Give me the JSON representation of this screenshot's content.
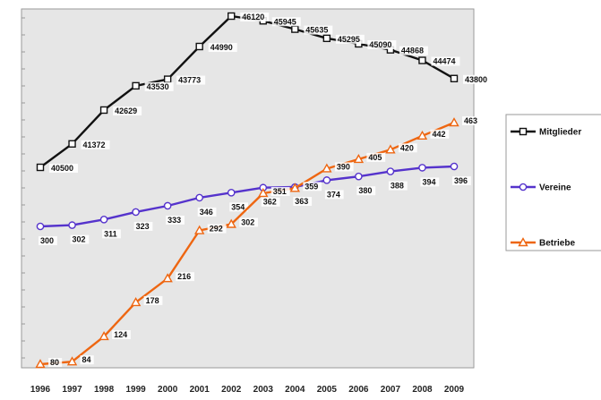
{
  "chart_data": {
    "type": "line",
    "title": "",
    "xlabel": "",
    "ylabel": "",
    "x": [
      "1996",
      "1997",
      "1998",
      "1999",
      "2000",
      "2001",
      "2002",
      "2003",
      "2004",
      "2005",
      "2006",
      "2007",
      "2008",
      "2009"
    ],
    "series": [
      {
        "name": "Mitglieder",
        "color": "#111111",
        "marker": "square",
        "values": [
          40500,
          41372,
          42629,
          43530,
          43773,
          44990,
          46120,
          45945,
          45635,
          45295,
          45090,
          44868,
          44474,
          43800
        ],
        "labels": [
          "40500",
          "41372",
          "42629",
          "43530",
          "43773",
          "44990",
          "46120",
          "45945",
          "45635",
          "45295",
          "45090",
          "44868",
          "44474",
          "43800"
        ]
      },
      {
        "name": "Vereine",
        "color": "#5533cc",
        "marker": "circle",
        "values": [
          300,
          302,
          311,
          323,
          333,
          346,
          354,
          362,
          363,
          374,
          380,
          388,
          394,
          396
        ],
        "labels": [
          "300",
          "302",
          "311",
          "323",
          "333",
          "346",
          "354",
          "362",
          "363",
          "374",
          "380",
          "388",
          "394",
          "396"
        ]
      },
      {
        "name": "Betriebe",
        "color": "#ee6611",
        "marker": "triangle",
        "values": [
          80,
          84,
          124,
          178,
          216,
          292,
          302,
          351,
          359,
          390,
          405,
          420,
          442,
          463
        ],
        "labels": [
          "80",
          "84",
          "124",
          "178",
          "216",
          "292",
          "302",
          "351",
          "359",
          "390",
          "405",
          "420",
          "442",
          "463"
        ]
      }
    ],
    "grid": false,
    "legend_position": "right",
    "plot_background": "#e6e6e6"
  }
}
